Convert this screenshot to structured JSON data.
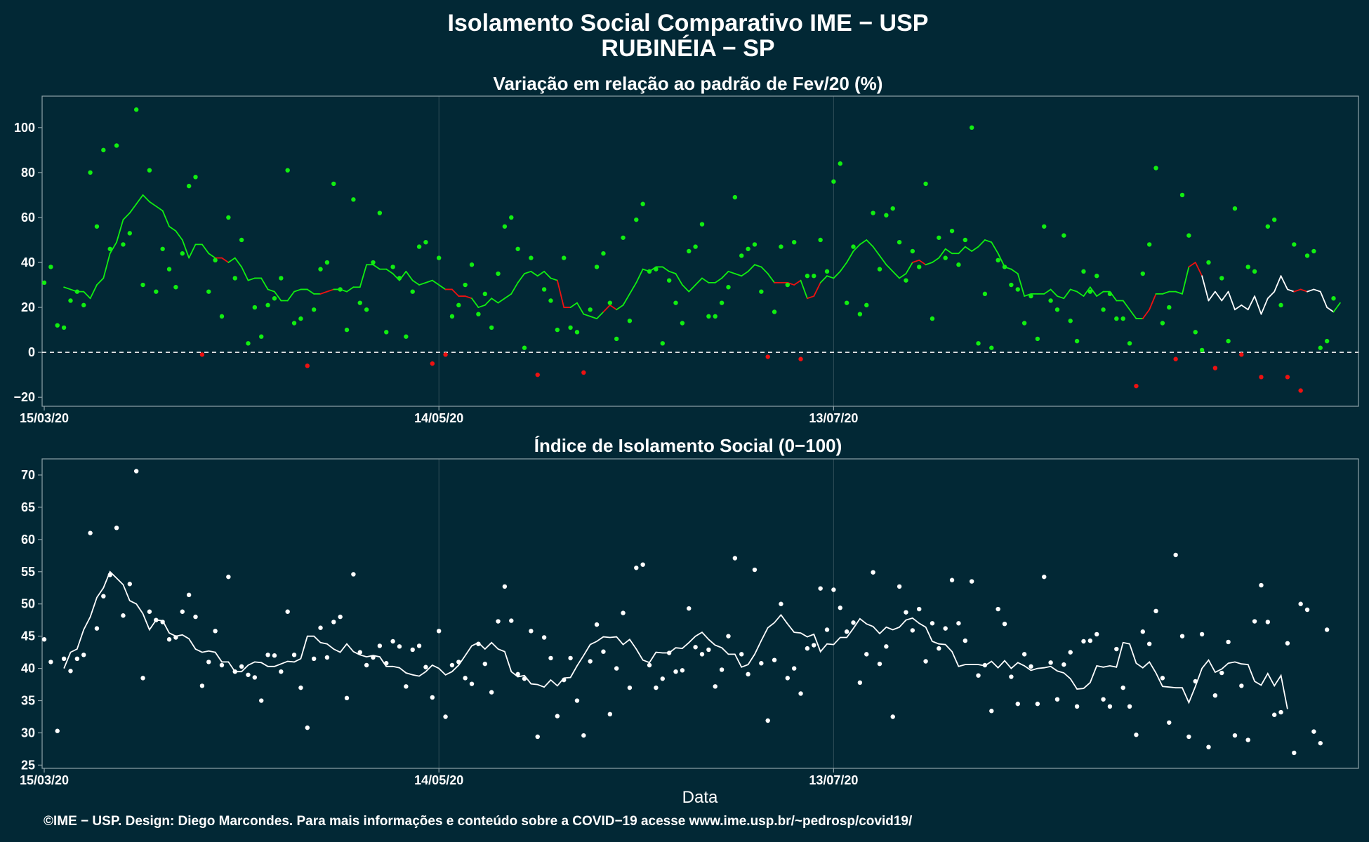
{
  "title_line1": "Isolamento Social Comparativo IME − USP",
  "title_line2": "RUBINÉIA − SP",
  "caption": "©IME − USP. Design: Diego Marcondes. Para mais informações e conteúdo sobre a COVID−19 acesse www.ime.usp.br/~pedrosp/covid19/",
  "x_axis_label": "Data",
  "x_ticks": [
    "15/03/20",
    "14/05/20",
    "13/07/20"
  ],
  "colors": {
    "background": "#022835",
    "positive": "#11ee11",
    "negative": "#ee1111",
    "neutral": "#ffffff",
    "frame": "#8ea2a8",
    "grid": "#2f4d58"
  },
  "chart_data": [
    {
      "type": "scatter",
      "title": "Variação em relação ao padrão de Fev/20 (%)",
      "xlabel": "",
      "ylabel": "",
      "ylim": [
        -24,
        114
      ],
      "yticks": [
        -20,
        0,
        20,
        40,
        60,
        80,
        100
      ],
      "x_start": "15/03/20",
      "reference_line": 0,
      "points": [
        31,
        38,
        12,
        11,
        23,
        27,
        21,
        80,
        56,
        90,
        46,
        92,
        48,
        53,
        108,
        30,
        81,
        27,
        46,
        37,
        29,
        44,
        74,
        78,
        -1,
        27,
        41,
        16,
        60,
        33,
        50,
        4,
        20,
        7,
        21,
        24,
        33,
        81,
        13,
        15,
        -6,
        19,
        37,
        40,
        75,
        28,
        10,
        68,
        22,
        19,
        40,
        62,
        9,
        38,
        33,
        7,
        27,
        47,
        49,
        -5,
        42,
        -1,
        16,
        21,
        30,
        39,
        17,
        26,
        11,
        35,
        56,
        60,
        46,
        2,
        42,
        -10,
        28,
        23,
        10,
        42,
        11,
        9,
        -9,
        19,
        38,
        44,
        22,
        6,
        51,
        14,
        59,
        66,
        36,
        37,
        4,
        32,
        22,
        13,
        45,
        47,
        57,
        16,
        16,
        22,
        29,
        69,
        43,
        46,
        48,
        27,
        -2,
        18,
        47,
        30,
        49,
        -3,
        34,
        34,
        50,
        36,
        76,
        84,
        22,
        47,
        17,
        21,
        62,
        37,
        61,
        64,
        49,
        32,
        45,
        38,
        75,
        15,
        51,
        42,
        54,
        39,
        50,
        100,
        4,
        26,
        2,
        41,
        38,
        30,
        28,
        13,
        25,
        6,
        56,
        23,
        19,
        52,
        14,
        5,
        36,
        27,
        34,
        19,
        26,
        15,
        15,
        4,
        -15,
        35,
        48,
        82,
        13,
        20,
        -3,
        70,
        52,
        9,
        1,
        40,
        -7,
        33,
        5,
        64,
        -1,
        38,
        36,
        -11,
        56,
        59,
        21,
        -11,
        48,
        -17,
        43,
        45,
        2,
        5,
        24
      ],
      "moving_average": [
        29,
        28,
        27,
        27,
        24,
        30,
        33,
        44,
        49,
        59,
        62,
        66,
        70,
        67,
        65,
        63,
        56,
        54,
        50,
        42,
        48,
        48,
        44,
        42,
        42,
        40,
        42,
        38,
        32,
        33,
        33,
        28,
        27,
        23,
        23,
        27,
        28,
        28,
        26,
        26,
        27,
        28,
        28,
        27,
        29,
        29,
        39,
        39,
        37,
        37,
        35,
        32,
        36,
        32,
        30,
        31,
        32,
        30,
        28,
        28,
        25,
        25,
        24,
        20,
        21,
        24,
        22,
        24,
        26,
        31,
        35,
        36,
        34,
        36,
        33,
        32,
        20,
        20,
        22,
        17,
        16,
        15,
        18,
        21,
        19,
        21,
        26,
        31,
        37,
        36,
        38,
        38,
        36,
        35,
        30,
        27,
        30,
        33,
        31,
        31,
        33,
        36,
        35,
        34,
        36,
        39,
        38,
        35,
        31,
        31,
        31,
        30,
        32,
        24,
        25,
        31,
        34,
        33,
        36,
        40,
        45,
        48,
        50,
        47,
        43,
        39,
        36,
        33,
        35,
        40,
        41,
        39,
        40,
        42,
        46,
        44,
        44,
        47,
        45,
        47,
        50,
        49,
        44,
        38,
        37,
        35,
        25,
        26,
        26,
        26,
        28,
        25,
        24,
        28,
        27,
        25,
        29,
        25,
        27,
        27,
        23,
        23,
        19,
        15,
        15,
        19,
        26,
        26,
        27,
        27,
        26,
        38,
        40,
        34,
        23,
        27,
        23,
        27,
        19,
        21,
        19,
        25,
        17,
        24,
        27,
        34,
        28,
        27,
        28,
        27,
        28,
        27,
        20,
        18,
        22
      ],
      "moving_average_colors": [
        "pos",
        "pos",
        "pos",
        "pos",
        "pos",
        "pos",
        "pos",
        "pos",
        "pos",
        "pos",
        "pos",
        "pos",
        "pos",
        "pos",
        "pos",
        "pos",
        "pos",
        "pos",
        "pos",
        "pos",
        "pos",
        "pos",
        "pos",
        "neg",
        "neg",
        "pos",
        "pos",
        "pos",
        "pos",
        "pos",
        "pos",
        "pos",
        "pos",
        "pos",
        "pos",
        "pos",
        "pos",
        "pos",
        "pos",
        "neg",
        "neg",
        "pos",
        "pos",
        "pos",
        "pos",
        "pos",
        "pos",
        "pos",
        "pos",
        "pos",
        "pos",
        "pos",
        "pos",
        "pos",
        "pos",
        "pos",
        "pos",
        "pos",
        "neg",
        "neg",
        "neg",
        "neg",
        "pos",
        "pos",
        "pos",
        "pos",
        "pos",
        "pos",
        "pos",
        "pos",
        "pos",
        "pos",
        "pos",
        "pos",
        "pos",
        "neg",
        "neg",
        "pos",
        "pos",
        "pos",
        "pos",
        "pos",
        "neg",
        "neg",
        "pos",
        "pos",
        "pos",
        "pos",
        "pos",
        "pos",
        "pos",
        "pos",
        "pos",
        "pos",
        "pos",
        "pos",
        "pos",
        "pos",
        "pos",
        "pos",
        "pos",
        "pos",
        "pos",
        "pos",
        "pos",
        "pos",
        "pos",
        "pos",
        "neg",
        "neg",
        "neg",
        "neg",
        "pos",
        "neg",
        "neg",
        "pos",
        "pos",
        "pos",
        "pos",
        "pos",
        "pos",
        "pos",
        "pos",
        "pos",
        "pos",
        "pos",
        "pos",
        "pos",
        "pos",
        "neg",
        "neg",
        "pos",
        "pos",
        "pos",
        "pos",
        "pos",
        "pos",
        "pos",
        "pos",
        "pos",
        "pos",
        "pos",
        "pos",
        "pos",
        "pos",
        "pos",
        "pos",
        "pos",
        "pos",
        "pos",
        "pos",
        "pos",
        "pos",
        "pos",
        "pos",
        "pos",
        "pos",
        "pos",
        "pos",
        "pos",
        "pos",
        "pos",
        "pos",
        "pos",
        "neg",
        "neg",
        "pos",
        "pos",
        "pos",
        "pos",
        "pos",
        "neg",
        "neg",
        "neu",
        "neu",
        "neu",
        "neu",
        "neu",
        "neu",
        "neu",
        "neu",
        "neu",
        "neu",
        "neu",
        "neu",
        "neu",
        "neu",
        "neg",
        "neg",
        "neu",
        "neu",
        "neu",
        "neu",
        "pos"
      ]
    },
    {
      "type": "scatter",
      "title": "Índice de Isolamento Social (0−100)",
      "xlabel": "Data",
      "ylabel": "",
      "ylim": [
        24.5,
        72.5
      ],
      "yticks": [
        25,
        30,
        35,
        40,
        45,
        50,
        55,
        60,
        65,
        70
      ],
      "x_start": "15/03/20",
      "points": [
        44.5,
        41.0,
        30.3,
        41.5,
        39.6,
        41.5,
        42.1,
        61.0,
        46.2,
        51.2,
        54.5,
        61.8,
        48.2,
        53.1,
        70.6,
        38.5,
        48.8,
        47.5,
        47.2,
        44.5,
        44.8,
        48.8,
        51.4,
        48.0,
        37.3,
        41.0,
        45.8,
        40.5,
        54.2,
        39.5,
        40.3,
        39.0,
        38.6,
        35.0,
        42.1,
        42.0,
        39.5,
        48.8,
        42.1,
        37.0,
        30.8,
        41.5,
        46.3,
        41.7,
        47.2,
        48.0,
        35.4,
        54.6,
        42.5,
        40.5,
        41.7,
        43.5,
        40.8,
        44.2,
        43.4,
        37.2,
        42.9,
        43.5,
        40.2,
        35.5,
        45.8,
        32.5,
        40.5,
        41.0,
        38.5,
        37.6,
        43.8,
        40.7,
        36.3,
        47.3,
        52.7,
        47.4,
        39.1,
        38.4,
        45.8,
        29.4,
        44.8,
        41.6,
        32.6,
        38.2,
        41.6,
        35.0,
        29.6,
        41.1,
        46.8,
        42.6,
        32.9,
        40.0,
        48.6,
        37.0,
        55.6,
        56.1,
        40.5,
        37.0,
        38.4,
        42.4,
        39.5,
        39.7,
        49.3,
        43.3,
        42.2,
        42.9,
        37.2,
        39.8,
        45.0,
        57.1,
        42.2,
        39.1,
        55.3,
        40.8,
        31.9,
        41.3,
        50.0,
        38.5,
        40.0,
        36.1,
        43.1,
        43.6,
        52.4,
        46.0,
        52.2,
        49.4,
        45.7,
        47.1,
        37.8,
        42.2,
        54.9,
        40.7,
        43.4,
        32.5,
        52.7,
        48.7,
        45.9,
        49.2,
        41.1,
        47.0,
        43.1,
        46.2,
        53.7,
        47.0,
        44.3,
        53.5,
        38.9,
        40.5,
        33.4,
        49.2,
        46.9,
        38.7,
        34.5,
        42.2,
        40.3,
        34.5,
        54.2,
        40.9,
        35.2,
        40.6,
        42.5,
        34.1,
        44.2,
        44.3,
        45.3,
        35.2,
        34.1,
        43.0,
        37.0,
        34.1,
        29.7,
        45.7,
        43.8,
        48.9,
        38.5,
        31.6,
        57.6,
        45.0,
        29.4,
        38.0,
        45.3,
        27.8,
        35.8,
        39.3,
        44.1,
        29.6,
        37.3,
        28.9,
        47.3,
        52.9,
        47.2,
        32.8,
        33.2,
        43.9,
        26.9,
        50.0,
        49.1,
        30.2,
        28.4,
        46.0
      ],
      "moving_average": [
        40.0,
        42.5,
        43.0,
        46.0,
        48.0,
        51.0,
        52.5,
        55.0,
        54.0,
        53.0,
        50.5,
        50.0,
        48.5,
        46.0,
        47.5,
        47.4,
        45.5,
        45.0,
        45.2,
        44.6,
        43.0,
        42.5,
        42.7,
        42.5,
        41.0,
        41.0,
        39.5,
        39.5,
        40.5,
        41.0,
        40.9,
        40.3,
        40.3,
        40.7,
        41.1,
        41.0,
        41.5,
        45.0,
        45.0,
        44.0,
        43.8,
        43.0,
        42.5,
        43.8,
        42.6,
        42.1,
        41.8,
        42.0,
        41.8,
        40.3,
        40.3,
        40.1,
        39.3,
        39.0,
        38.8,
        39.5,
        40.5,
        40.0,
        39.0,
        39.5,
        40.5,
        42.0,
        43.5,
        44.0,
        43.0,
        44.0,
        43.0,
        42.6,
        39.5,
        38.7,
        38.9,
        37.6,
        37.5,
        37.1,
        38.2,
        37.3,
        38.5,
        38.6,
        40.4,
        42.0,
        43.7,
        44.2,
        44.9,
        44.8,
        44.9,
        43.7,
        44.5,
        43.0,
        41.3,
        40.9,
        42.5,
        42.4,
        42.4,
        43.2,
        43.1,
        44.0,
        45.0,
        45.6,
        44.5,
        43.6,
        43.2,
        42.2,
        42.2,
        40.2,
        40.6,
        42.2,
        44.3,
        46.3,
        47.1,
        48.3,
        46.9,
        45.6,
        45.5,
        44.9,
        45.3,
        42.6,
        43.8,
        43.7,
        44.8,
        44.8,
        46.2,
        47.7,
        46.9,
        46.5,
        45.4,
        46.4,
        46.0,
        46.4,
        47.5,
        47.8,
        47.0,
        46.4,
        44.2,
        43.8,
        43.7,
        42.6,
        40.3,
        40.6,
        40.6,
        40.6,
        40.4,
        41.1,
        40.1,
        41.2,
        40.0,
        40.9,
        40.4,
        39.7,
        40.0,
        40.1,
        40.3,
        39.6,
        39.3,
        38.4,
        36.8,
        36.9,
        37.8,
        40.4,
        40.2,
        40.4,
        40.2,
        44.0,
        43.8,
        40.8,
        40.1,
        41.0,
        39.3,
        37.2,
        37.1,
        37.0,
        37.0,
        34.7,
        37.2,
        40.0,
        41.3,
        39.4,
        39.9,
        40.8,
        41.0,
        40.7,
        40.6,
        38.0,
        37.4,
        39.2,
        37.3,
        38.9,
        33.7
      ]
    }
  ]
}
